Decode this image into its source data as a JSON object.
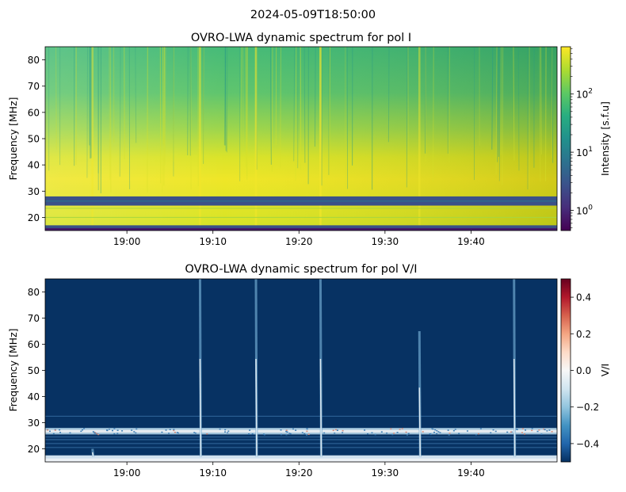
{
  "figure": {
    "suptitle": "2024-05-09T18:50:00"
  },
  "chart_data": [
    {
      "type": "heatmap",
      "title": "OVRO-LWA dynamic spectrum for pol I",
      "xlabel": "",
      "ylabel": "Frequency [MHz]",
      "x_ticks": [
        "19:00",
        "19:10",
        "19:20",
        "19:30",
        "19:40"
      ],
      "x_range": [
        "18:50:30",
        "19:50:00"
      ],
      "y_ticks": [
        20,
        30,
        40,
        50,
        60,
        70,
        80
      ],
      "ylim": [
        15,
        85
      ],
      "colormap": "viridis",
      "colorbar": {
        "label": "Intensity [s.f.u]",
        "scale": "log",
        "range": [
          0.45,
          650
        ],
        "tick_values": [
          1,
          10,
          100
        ],
        "tick_exponents": [
          "0",
          "1",
          "2"
        ]
      },
      "features": {
        "flagged_bands_MHz": [
          [
            15,
            17
          ],
          [
            24.5,
            28
          ]
        ],
        "bursts": [
          {
            "time": "18:56",
            "strength": 0.45
          },
          {
            "time": "19:08:30",
            "strength": 0.55
          },
          {
            "time": "19:15:00",
            "strength": 0.6
          },
          {
            "time": "19:22:30",
            "strength": 0.7
          },
          {
            "time": "19:34:00",
            "strength": 0.45
          }
        ]
      }
    },
    {
      "type": "heatmap",
      "title": "OVRO-LWA dynamic spectrum for pol V/I",
      "xlabel": "",
      "ylabel": "Frequency [MHz]",
      "x_ticks": [
        "19:00",
        "19:10",
        "19:20",
        "19:30",
        "19:40"
      ],
      "x_range": [
        "18:50:30",
        "19:50:00"
      ],
      "y_ticks": [
        20,
        30,
        40,
        50,
        60,
        70,
        80
      ],
      "ylim": [
        15,
        85
      ],
      "colormap": "RdBu_r",
      "colorbar": {
        "label": "V/I",
        "scale": "linear",
        "range": [
          -0.5,
          0.5
        ],
        "tick_values": [
          -0.4,
          -0.2,
          0.0,
          0.2,
          0.4
        ],
        "tick_labels": [
          "−0.4",
          "−0.2",
          "0.0",
          "0.2",
          "0.4"
        ]
      },
      "features": {
        "background_value": -0.5,
        "bursts": [
          {
            "time": "18:56",
            "f_top_MHz": 20
          },
          {
            "time": "19:08:30",
            "f_top_MHz": 85
          },
          {
            "time": "19:15:00",
            "f_top_MHz": 85
          },
          {
            "time": "19:22:30",
            "f_top_MHz": 85
          },
          {
            "time": "19:34:00",
            "f_top_MHz": 65
          },
          {
            "time": "19:45:00",
            "f_top_MHz": 85
          }
        ]
      }
    }
  ]
}
